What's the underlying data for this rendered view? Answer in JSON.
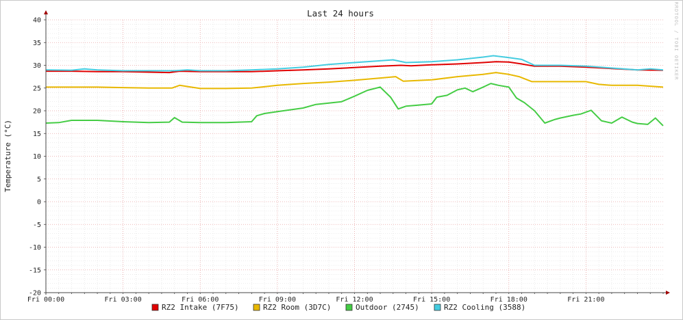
{
  "chart_data": {
    "type": "line",
    "title": "Last 24 hours",
    "ylabel": "Temperature (°C)",
    "xlabel": "",
    "ylim": [
      -20,
      40
    ],
    "y_ticks": [
      40,
      35,
      30,
      25,
      20,
      15,
      10,
      5,
      0,
      -5,
      -10,
      -15,
      -20
    ],
    "x_range_hours": [
      0,
      24
    ],
    "x_ticks": [
      {
        "label": "Fri 00:00",
        "hour": 0
      },
      {
        "label": "Fri 03:00",
        "hour": 3
      },
      {
        "label": "Fri 06:00",
        "hour": 6
      },
      {
        "label": "Fri 09:00",
        "hour": 9
      },
      {
        "label": "Fri 12:00",
        "hour": 12
      },
      {
        "label": "Fri 15:00",
        "hour": 15
      },
      {
        "label": "Fri 18:00",
        "hour": 18
      },
      {
        "label": "Fri 21:00",
        "hour": 21
      }
    ],
    "grid": true,
    "legend_position": "bottom",
    "watermark": "RRDTOOL / TOBI OETIKER",
    "series": [
      {
        "name": "RZ2 Intake (7F75)",
        "color": "#e00000",
        "x": [
          0,
          1,
          2,
          3,
          4,
          4.8,
          5.2,
          6,
          7,
          8,
          9,
          10,
          11,
          12,
          13,
          13.8,
          14.2,
          15,
          16,
          17,
          17.5,
          18,
          18.5,
          19,
          20,
          21,
          22,
          23,
          24
        ],
        "y": [
          28.7,
          28.7,
          28.6,
          28.6,
          28.5,
          28.4,
          28.7,
          28.6,
          28.6,
          28.6,
          28.8,
          29.0,
          29.2,
          29.5,
          29.8,
          30.0,
          29.9,
          30.1,
          30.3,
          30.6,
          30.8,
          30.7,
          30.3,
          29.8,
          29.8,
          29.6,
          29.3,
          29.0,
          28.9
        ]
      },
      {
        "name": "RZ2 Room (3D7C)",
        "color": "#e8b800",
        "x": [
          0,
          1,
          2,
          3,
          4,
          4.9,
          5.2,
          6,
          7,
          8,
          9,
          10,
          11,
          12,
          13,
          13.6,
          13.9,
          15,
          16,
          17,
          17.5,
          18,
          18.4,
          18.9,
          19.5,
          20,
          21,
          21.5,
          22,
          23,
          24
        ],
        "y": [
          25.2,
          25.2,
          25.2,
          25.1,
          25.0,
          25.0,
          25.6,
          24.9,
          24.9,
          25.0,
          25.6,
          26.0,
          26.3,
          26.7,
          27.2,
          27.5,
          26.5,
          26.8,
          27.5,
          28.0,
          28.4,
          28.0,
          27.5,
          26.4,
          26.4,
          26.4,
          26.4,
          25.8,
          25.6,
          25.6,
          25.2
        ]
      },
      {
        "name": "Outdoor (2745)",
        "color": "#44cc44",
        "x": [
          0,
          0.5,
          1,
          2,
          3,
          4,
          4.8,
          5.0,
          5.3,
          6,
          7,
          8,
          8.2,
          8.5,
          9,
          10,
          10.5,
          11,
          11.5,
          12,
          12.5,
          13,
          13.4,
          13.7,
          14,
          14.4,
          15,
          15.2,
          15.6,
          16,
          16.3,
          16.6,
          17,
          17.3,
          17.6,
          18,
          18.3,
          18.6,
          19,
          19.4,
          19.8,
          20,
          20.5,
          20.8,
          21.2,
          21.6,
          22,
          22.4,
          22.8,
          23,
          23.4,
          23.7,
          24
        ],
        "y": [
          17.3,
          17.4,
          17.9,
          17.9,
          17.6,
          17.4,
          17.5,
          18.5,
          17.5,
          17.4,
          17.4,
          17.6,
          18.9,
          19.4,
          19.8,
          20.6,
          21.4,
          21.7,
          22.0,
          23.2,
          24.5,
          25.2,
          23.0,
          20.4,
          21.0,
          21.2,
          21.5,
          23.0,
          23.4,
          24.6,
          25.0,
          24.2,
          25.2,
          26.0,
          25.6,
          25.2,
          22.8,
          21.8,
          20.0,
          17.3,
          18.1,
          18.4,
          19.0,
          19.3,
          20.1,
          17.8,
          17.3,
          18.6,
          17.5,
          17.2,
          17.0,
          18.4,
          16.7
        ]
      },
      {
        "name": "RZ2 Cooling (3588)",
        "color": "#44cce0",
        "x": [
          0,
          1,
          1.5,
          2,
          3,
          4,
          5,
          5.5,
          6,
          7,
          8,
          9,
          10,
          11,
          12,
          13,
          13.5,
          14,
          15,
          16,
          17,
          17.4,
          18,
          18.5,
          19,
          20,
          21,
          22,
          23,
          23.5,
          24
        ],
        "y": [
          29.0,
          28.9,
          29.2,
          29.0,
          28.8,
          28.8,
          28.8,
          29.0,
          28.8,
          28.8,
          29.0,
          29.2,
          29.6,
          30.2,
          30.6,
          31.0,
          31.2,
          30.6,
          30.8,
          31.2,
          31.8,
          32.1,
          31.7,
          31.3,
          30.0,
          30.0,
          29.8,
          29.4,
          29.0,
          29.2,
          29.0
        ]
      }
    ]
  }
}
